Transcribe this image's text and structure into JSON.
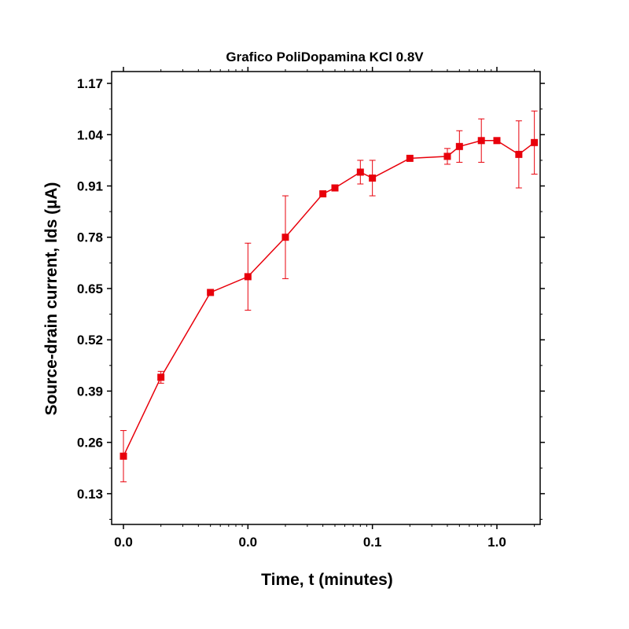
{
  "chart_data": {
    "type": "line",
    "title": "Grafico PoliDopamina KCl 0.8V",
    "xlabel": "Time, t (minutes)",
    "ylabel": "Source-drain current, Ids (µA)",
    "x_scale": "log",
    "xlim": [
      0.001,
      2.1
    ],
    "ylim": [
      0.052,
      1.2
    ],
    "x_ticks": [
      {
        "value": 0.001,
        "label": "0.0"
      },
      {
        "value": 0.01,
        "label": "0.0"
      },
      {
        "value": 0.1,
        "label": "0.1"
      },
      {
        "value": 1.0,
        "label": "1.0"
      }
    ],
    "y_ticks": [
      {
        "value": 0.13,
        "label": "0.13"
      },
      {
        "value": 0.26,
        "label": "0.26"
      },
      {
        "value": 0.39,
        "label": "0.39"
      },
      {
        "value": 0.52,
        "label": "0.52"
      },
      {
        "value": 0.65,
        "label": "0.65"
      },
      {
        "value": 0.78,
        "label": "0.78"
      },
      {
        "value": 0.91,
        "label": "0.91"
      },
      {
        "value": 1.04,
        "label": "1.04"
      },
      {
        "value": 1.17,
        "label": "1.17"
      }
    ],
    "series": [
      {
        "color": "#e8000b",
        "marker": "square",
        "points": [
          {
            "x": 0.001,
            "y": 0.225,
            "err": 0.065
          },
          {
            "x": 0.002,
            "y": 0.425,
            "err": 0.015
          },
          {
            "x": 0.005,
            "y": 0.64,
            "err": 0.0
          },
          {
            "x": 0.01,
            "y": 0.68,
            "err": 0.085
          },
          {
            "x": 0.02,
            "y": 0.78,
            "err": 0.105
          },
          {
            "x": 0.04,
            "y": 0.89,
            "err": 0.0
          },
          {
            "x": 0.05,
            "y": 0.905,
            "err": 0.0
          },
          {
            "x": 0.08,
            "y": 0.945,
            "err": 0.03
          },
          {
            "x": 0.1,
            "y": 0.93,
            "err": 0.045
          },
          {
            "x": 0.2,
            "y": 0.98,
            "err": 0.0
          },
          {
            "x": 0.4,
            "y": 0.985,
            "err": 0.02
          },
          {
            "x": 0.5,
            "y": 1.01,
            "err": 0.04
          },
          {
            "x": 0.75,
            "y": 1.025,
            "err": 0.055
          },
          {
            "x": 1.0,
            "y": 1.025,
            "err": 0.0
          },
          {
            "x": 1.5,
            "y": 0.99,
            "err": 0.085
          },
          {
            "x": 2.0,
            "y": 1.02,
            "err": 0.08
          }
        ]
      }
    ],
    "grid": false,
    "legend": "none"
  }
}
